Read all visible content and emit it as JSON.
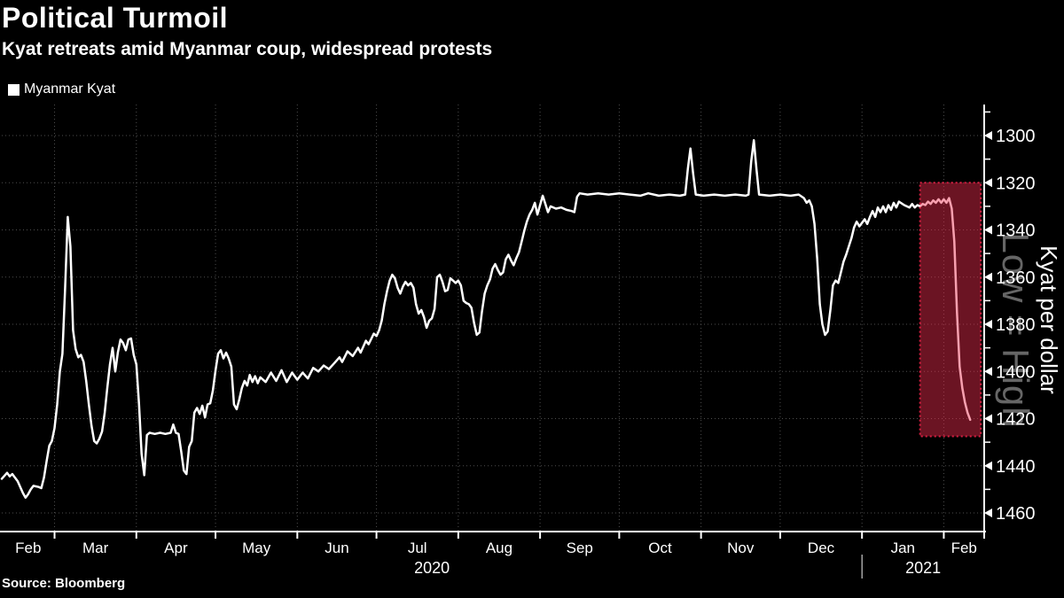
{
  "header": {
    "title": "Political Turmoil",
    "subtitle": "Kyat retreats amid Myanmar coup, widespread protests"
  },
  "legend": {
    "label": "Myanmar Kyat"
  },
  "source": {
    "label": "Source: Bloomberg"
  },
  "right_labels": {
    "watermark": "Low = High",
    "axis_title": "Kyat per dollar"
  },
  "colors": {
    "background": "#000000",
    "text": "#ffffff",
    "line": "#ffffff",
    "grid": "#4e4e4e",
    "axis": "#ffffff",
    "highlight_fill": "rgba(238,44,78,0.45)",
    "highlight_border": "#d91e42",
    "watermark_text": "#666666",
    "year_divider": "#cccccc"
  },
  "chart_data": {
    "type": "line",
    "title": "Political Turmoil",
    "subtitle": "Kyat retreats amid Myanmar coup, widespread protests",
    "series_name": "Myanmar Kyat",
    "ylabel": "Kyat per dollar",
    "legend_position": "top-left",
    "grid": true,
    "y_axis": {
      "min": 1300,
      "max": 1460,
      "tick_step": 20,
      "minor_tick_step": 10,
      "ticks": [
        1300,
        1320,
        1340,
        1360,
        1380,
        1400,
        1420,
        1440,
        1460
      ],
      "inverted": true,
      "orientation_note": "Low = High"
    },
    "x_axis": {
      "start": "2020-02-10",
      "end": "2021-02-16",
      "month_boundaries": [
        "2020-03-01",
        "2020-04-01",
        "2020-05-01",
        "2020-06-01",
        "2020-07-01",
        "2020-08-01",
        "2020-09-01",
        "2020-10-01",
        "2020-11-01",
        "2020-12-01",
        "2021-01-01",
        "2021-02-01"
      ],
      "month_labels": [
        "Feb",
        "Mar",
        "Apr",
        "May",
        "Jun",
        "Jul",
        "Aug",
        "Sep",
        "Oct",
        "Nov",
        "Dec",
        "Jan",
        "Feb"
      ],
      "year_divider": "2021-01-01",
      "year_labels": [
        "2020",
        "2021"
      ]
    },
    "highlight_region": {
      "from": "2021-01-23",
      "to": "2021-02-15",
      "value_top": 1320,
      "value_bottom": 1427.5
    },
    "points": [
      [
        "2020-02-10",
        1445.5
      ],
      [
        "2020-02-12",
        1443
      ],
      [
        "2020-02-13",
        1444.5
      ],
      [
        "2020-02-14",
        1443.5
      ],
      [
        "2020-02-16",
        1446.5
      ],
      [
        "2020-02-18",
        1451.5
      ],
      [
        "2020-02-19",
        1453.5
      ],
      [
        "2020-02-20",
        1452
      ],
      [
        "2020-02-21",
        1450
      ],
      [
        "2020-02-22",
        1448.5
      ],
      [
        "2020-02-24",
        1449
      ],
      [
        "2020-02-25",
        1449.5
      ],
      [
        "2020-02-26",
        1445
      ],
      [
        "2020-02-27",
        1438
      ],
      [
        "2020-02-28",
        1431.5
      ],
      [
        "2020-02-29",
        1429.5
      ],
      [
        "2020-03-01",
        1424
      ],
      [
        "2020-03-02",
        1414
      ],
      [
        "2020-03-03",
        1400
      ],
      [
        "2020-03-04",
        1392.5
      ],
      [
        "2020-03-05",
        1365
      ],
      [
        "2020-03-06",
        1334.5
      ],
      [
        "2020-03-07",
        1347
      ],
      [
        "2020-03-08",
        1382.5
      ],
      [
        "2020-03-09",
        1390.5
      ],
      [
        "2020-03-10",
        1394
      ],
      [
        "2020-03-11",
        1393
      ],
      [
        "2020-03-12",
        1396
      ],
      [
        "2020-03-13",
        1404
      ],
      [
        "2020-03-14",
        1414
      ],
      [
        "2020-03-15",
        1423
      ],
      [
        "2020-03-16",
        1429.5
      ],
      [
        "2020-03-17",
        1430.5
      ],
      [
        "2020-03-18",
        1428.5
      ],
      [
        "2020-03-19",
        1425.5
      ],
      [
        "2020-03-20",
        1417.5
      ],
      [
        "2020-03-21",
        1407
      ],
      [
        "2020-03-22",
        1397
      ],
      [
        "2020-03-23",
        1390
      ],
      [
        "2020-03-24",
        1400
      ],
      [
        "2020-03-25",
        1392
      ],
      [
        "2020-03-26",
        1386.5
      ],
      [
        "2020-03-27",
        1388
      ],
      [
        "2020-03-28",
        1391
      ],
      [
        "2020-03-29",
        1386.5
      ],
      [
        "2020-03-30",
        1386
      ],
      [
        "2020-03-31",
        1393
      ],
      [
        "2020-04-01",
        1397
      ],
      [
        "2020-04-02",
        1414
      ],
      [
        "2020-04-03",
        1435
      ],
      [
        "2020-04-04",
        1444
      ],
      [
        "2020-04-05",
        1427
      ],
      [
        "2020-04-06",
        1426
      ],
      [
        "2020-04-08",
        1426.5
      ],
      [
        "2020-04-10",
        1426
      ],
      [
        "2020-04-12",
        1426.5
      ],
      [
        "2020-04-14",
        1426
      ],
      [
        "2020-04-15",
        1422.5
      ],
      [
        "2020-04-16",
        1426
      ],
      [
        "2020-04-17",
        1426.5
      ],
      [
        "2020-04-18",
        1434
      ],
      [
        "2020-04-19",
        1442
      ],
      [
        "2020-04-20",
        1443.5
      ],
      [
        "2020-04-21",
        1432
      ],
      [
        "2020-04-22",
        1429.5
      ],
      [
        "2020-04-23",
        1417.5
      ],
      [
        "2020-04-24",
        1415.5
      ],
      [
        "2020-04-25",
        1418
      ],
      [
        "2020-04-26",
        1414.5
      ],
      [
        "2020-04-27",
        1419.5
      ],
      [
        "2020-04-28",
        1414
      ],
      [
        "2020-04-29",
        1413.5
      ],
      [
        "2020-04-30",
        1408
      ],
      [
        "2020-05-01",
        1399.5
      ],
      [
        "2020-05-02",
        1392.5
      ],
      [
        "2020-05-03",
        1391
      ],
      [
        "2020-05-04",
        1394.5
      ],
      [
        "2020-05-05",
        1392
      ],
      [
        "2020-05-06",
        1394.5
      ],
      [
        "2020-05-07",
        1398
      ],
      [
        "2020-05-08",
        1414
      ],
      [
        "2020-05-09",
        1416
      ],
      [
        "2020-05-10",
        1412
      ],
      [
        "2020-05-11",
        1407
      ],
      [
        "2020-05-12",
        1404
      ],
      [
        "2020-05-13",
        1406
      ],
      [
        "2020-05-14",
        1401.5
      ],
      [
        "2020-05-15",
        1404.5
      ],
      [
        "2020-05-16",
        1402
      ],
      [
        "2020-05-17",
        1405
      ],
      [
        "2020-05-18",
        1402.5
      ],
      [
        "2020-05-20",
        1404.5
      ],
      [
        "2020-05-22",
        1400.5
      ],
      [
        "2020-05-24",
        1404
      ],
      [
        "2020-05-26",
        1399.5
      ],
      [
        "2020-05-28",
        1404.5
      ],
      [
        "2020-05-30",
        1400.5
      ],
      [
        "2020-06-01",
        1403.5
      ],
      [
        "2020-06-03",
        1400.5
      ],
      [
        "2020-06-05",
        1403
      ],
      [
        "2020-06-07",
        1398.5
      ],
      [
        "2020-06-09",
        1400
      ],
      [
        "2020-06-11",
        1397.5
      ],
      [
        "2020-06-13",
        1399
      ],
      [
        "2020-06-15",
        1396.5
      ],
      [
        "2020-06-17",
        1394
      ],
      [
        "2020-06-18",
        1396
      ],
      [
        "2020-06-20",
        1391.5
      ],
      [
        "2020-06-22",
        1393.5
      ],
      [
        "2020-06-24",
        1390
      ],
      [
        "2020-06-25",
        1392
      ],
      [
        "2020-06-27",
        1387
      ],
      [
        "2020-06-28",
        1388.5
      ],
      [
        "2020-06-30",
        1384
      ],
      [
        "2020-07-01",
        1385
      ],
      [
        "2020-07-02",
        1382.5
      ],
      [
        "2020-07-03",
        1378.5
      ],
      [
        "2020-07-04",
        1371.5
      ],
      [
        "2020-07-05",
        1366
      ],
      [
        "2020-07-06",
        1361.5
      ],
      [
        "2020-07-07",
        1359
      ],
      [
        "2020-07-08",
        1360.5
      ],
      [
        "2020-07-09",
        1364.5
      ],
      [
        "2020-07-10",
        1367
      ],
      [
        "2020-07-11",
        1364
      ],
      [
        "2020-07-12",
        1362
      ],
      [
        "2020-07-13",
        1363.5
      ],
      [
        "2020-07-14",
        1362.5
      ],
      [
        "2020-07-15",
        1364.5
      ],
      [
        "2020-07-16",
        1371.5
      ],
      [
        "2020-07-17",
        1375.5
      ],
      [
        "2020-07-18",
        1374
      ],
      [
        "2020-07-19",
        1377
      ],
      [
        "2020-07-20",
        1381.5
      ],
      [
        "2020-07-21",
        1378.5
      ],
      [
        "2020-07-22",
        1377.5
      ],
      [
        "2020-07-23",
        1373.5
      ],
      [
        "2020-07-24",
        1360
      ],
      [
        "2020-07-25",
        1359
      ],
      [
        "2020-07-26",
        1362
      ],
      [
        "2020-07-27",
        1366
      ],
      [
        "2020-07-28",
        1365.5
      ],
      [
        "2020-07-29",
        1360.5
      ],
      [
        "2020-07-30",
        1361.5
      ],
      [
        "2020-07-31",
        1362.5
      ],
      [
        "2020-08-01",
        1361.5
      ],
      [
        "2020-08-02",
        1363.5
      ],
      [
        "2020-08-03",
        1370
      ],
      [
        "2020-08-04",
        1371
      ],
      [
        "2020-08-05",
        1371.5
      ],
      [
        "2020-08-06",
        1373
      ],
      [
        "2020-08-07",
        1379.5
      ],
      [
        "2020-08-08",
        1384.5
      ],
      [
        "2020-08-09",
        1383.5
      ],
      [
        "2020-08-10",
        1374.5
      ],
      [
        "2020-08-11",
        1367
      ],
      [
        "2020-08-12",
        1363.5
      ],
      [
        "2020-08-13",
        1361
      ],
      [
        "2020-08-14",
        1356.5
      ],
      [
        "2020-08-15",
        1354.5
      ],
      [
        "2020-08-16",
        1357
      ],
      [
        "2020-08-17",
        1359
      ],
      [
        "2020-08-18",
        1358
      ],
      [
        "2020-08-19",
        1352.5
      ],
      [
        "2020-08-20",
        1350.5
      ],
      [
        "2020-08-21",
        1353
      ],
      [
        "2020-08-22",
        1355
      ],
      [
        "2020-08-23",
        1352
      ],
      [
        "2020-08-24",
        1349.5
      ],
      [
        "2020-08-25",
        1345
      ],
      [
        "2020-08-26",
        1340.5
      ],
      [
        "2020-08-27",
        1336.5
      ],
      [
        "2020-08-28",
        1333.5
      ],
      [
        "2020-08-29",
        1331.5
      ],
      [
        "2020-08-30",
        1328.5
      ],
      [
        "2020-08-31",
        1333.5
      ],
      [
        "2020-09-01",
        1329.5
      ],
      [
        "2020-09-02",
        1325.5
      ],
      [
        "2020-09-03",
        1329
      ],
      [
        "2020-09-04",
        1332.5
      ],
      [
        "2020-09-05",
        1330
      ],
      [
        "2020-09-07",
        1331
      ],
      [
        "2020-09-09",
        1330.5
      ],
      [
        "2020-09-11",
        1331.5
      ],
      [
        "2020-09-13",
        1332
      ],
      [
        "2020-09-14",
        1332.5
      ],
      [
        "2020-09-15",
        1326
      ],
      [
        "2020-09-16",
        1324.5
      ],
      [
        "2020-09-19",
        1325
      ],
      [
        "2020-09-23",
        1324.5
      ],
      [
        "2020-09-27",
        1325
      ],
      [
        "2020-10-01",
        1324.5
      ],
      [
        "2020-10-05",
        1325
      ],
      [
        "2020-10-09",
        1325.5
      ],
      [
        "2020-10-12",
        1324.5
      ],
      [
        "2020-10-16",
        1325.5
      ],
      [
        "2020-10-20",
        1325
      ],
      [
        "2020-10-24",
        1325.5
      ],
      [
        "2020-10-26",
        1325
      ],
      [
        "2020-10-27",
        1314
      ],
      [
        "2020-10-28",
        1305.5
      ],
      [
        "2020-10-29",
        1316
      ],
      [
        "2020-10-30",
        1325
      ],
      [
        "2020-11-02",
        1325.5
      ],
      [
        "2020-11-06",
        1325
      ],
      [
        "2020-11-10",
        1325.5
      ],
      [
        "2020-11-14",
        1325
      ],
      [
        "2020-11-18",
        1325.5
      ],
      [
        "2020-11-19",
        1325
      ],
      [
        "2020-11-20",
        1311
      ],
      [
        "2020-11-21",
        1302
      ],
      [
        "2020-11-22",
        1314
      ],
      [
        "2020-11-23",
        1325
      ],
      [
        "2020-11-27",
        1325.5
      ],
      [
        "2020-12-01",
        1325
      ],
      [
        "2020-12-05",
        1325.5
      ],
      [
        "2020-12-08",
        1325
      ],
      [
        "2020-12-10",
        1326.5
      ],
      [
        "2020-12-11",
        1328.5
      ],
      [
        "2020-12-12",
        1327.5
      ],
      [
        "2020-12-13",
        1330
      ],
      [
        "2020-12-14",
        1337.5
      ],
      [
        "2020-12-15",
        1352
      ],
      [
        "2020-12-16",
        1371.5
      ],
      [
        "2020-12-17",
        1380
      ],
      [
        "2020-12-18",
        1384.5
      ],
      [
        "2020-12-19",
        1383
      ],
      [
        "2020-12-20",
        1374
      ],
      [
        "2020-12-21",
        1363.5
      ],
      [
        "2020-12-22",
        1361.5
      ],
      [
        "2020-12-23",
        1362.5
      ],
      [
        "2020-12-24",
        1358
      ],
      [
        "2020-12-25",
        1353.5
      ],
      [
        "2020-12-26",
        1350.5
      ],
      [
        "2020-12-27",
        1347
      ],
      [
        "2020-12-28",
        1343.5
      ],
      [
        "2020-12-29",
        1339
      ],
      [
        "2020-12-30",
        1336.5
      ],
      [
        "2020-12-31",
        1338.5
      ],
      [
        "2021-01-01",
        1337
      ],
      [
        "2021-01-02",
        1335.5
      ],
      [
        "2021-01-03",
        1337.5
      ],
      [
        "2021-01-04",
        1334.5
      ],
      [
        "2021-01-05",
        1332
      ],
      [
        "2021-01-06",
        1334.5
      ],
      [
        "2021-01-07",
        1330.5
      ],
      [
        "2021-01-08",
        1332.5
      ],
      [
        "2021-01-09",
        1330
      ],
      [
        "2021-01-10",
        1332.5
      ],
      [
        "2021-01-11",
        1329.5
      ],
      [
        "2021-01-12",
        1331.5
      ],
      [
        "2021-01-13",
        1328.5
      ],
      [
        "2021-01-14",
        1330.5
      ],
      [
        "2021-01-15",
        1328
      ],
      [
        "2021-01-17",
        1329.5
      ],
      [
        "2021-01-19",
        1330.5
      ],
      [
        "2021-01-20",
        1329
      ],
      [
        "2021-01-21",
        1330.5
      ],
      [
        "2021-01-22",
        1329.5
      ],
      [
        "2021-01-23",
        1330
      ],
      [
        "2021-01-24",
        1329
      ],
      [
        "2021-01-25",
        1329.5
      ],
      [
        "2021-01-26",
        1328
      ],
      [
        "2021-01-27",
        1329
      ],
      [
        "2021-01-28",
        1327.5
      ],
      [
        "2021-01-29",
        1328.5
      ],
      [
        "2021-01-30",
        1327
      ],
      [
        "2021-01-31",
        1328.5
      ],
      [
        "2021-02-01",
        1327
      ],
      [
        "2021-02-02",
        1328.5
      ],
      [
        "2021-02-03",
        1326.5
      ],
      [
        "2021-02-04",
        1331
      ],
      [
        "2021-02-05",
        1345
      ],
      [
        "2021-02-06",
        1375
      ],
      [
        "2021-02-07",
        1398
      ],
      [
        "2021-02-08",
        1407
      ],
      [
        "2021-02-09",
        1413
      ],
      [
        "2021-02-10",
        1417.5
      ],
      [
        "2021-02-11",
        1420.5
      ]
    ]
  }
}
